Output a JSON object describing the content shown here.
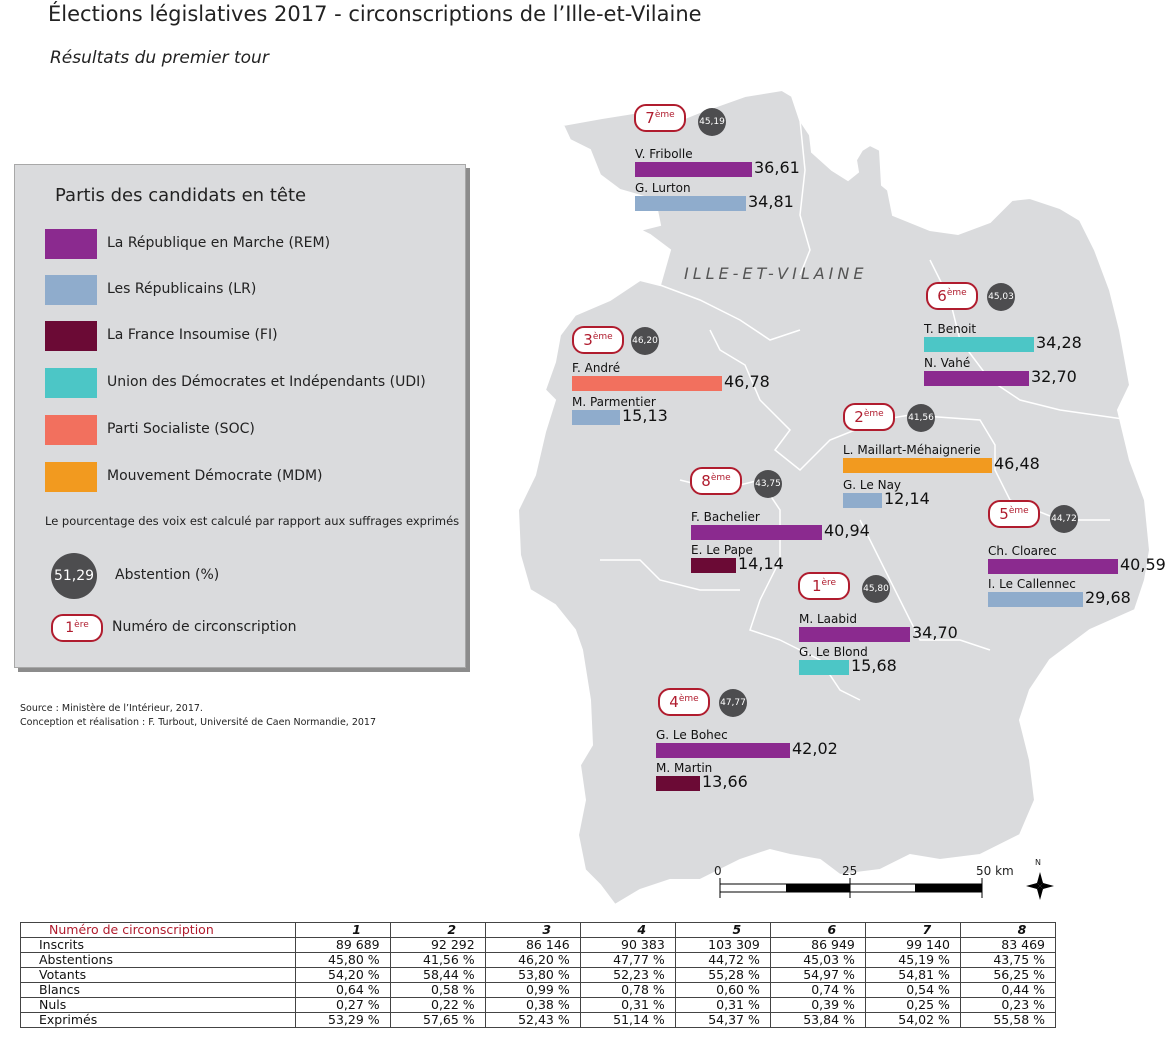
{
  "title": "Élections législatives 2017 - circonscriptions de l’Ille-et-Vilaine",
  "subtitle": "Résultats du premier tour",
  "department_label": "ILLE-ET-VILAINE",
  "colors": {
    "REM": "#8b2a8f",
    "LR": "#8faccc",
    "FI": "#6b0a35",
    "UDI": "#4cc6c6",
    "SOC": "#f2705e",
    "MDM": "#f29a1f",
    "map_fill": "#dadbdd",
    "badge": "#b01c2e",
    "abstention": "#4d4d4f"
  },
  "legend": {
    "title": "Partis des candidats en tête",
    "parties": [
      {
        "code": "REM",
        "label": "La République en Marche (REM)"
      },
      {
        "code": "LR",
        "label": "Les Républicains (LR)"
      },
      {
        "code": "FI",
        "label": "La France Insoumise (FI)"
      },
      {
        "code": "UDI",
        "label": "Union des Démocrates et Indépendants (UDI)"
      },
      {
        "code": "SOC",
        "label": "Parti Socialiste (SOC)"
      },
      {
        "code": "MDM",
        "label": "Mouvement Démocrate (MDM)"
      }
    ],
    "note": "Le pourcentage des voix est calculé par rapport aux suffrages exprimés",
    "abstention_example": "51,29",
    "abstention_label": "Abstention (%)",
    "circ_example_num": "1",
    "circ_example_suffix": "ère",
    "circ_label": "Numéro de circonscription"
  },
  "source_line1": "Source : Ministère de l’Intérieur, 2017.",
  "source_line2": "Conception et réalisation : F. Turbout, Université de Caen Normandie, 2017",
  "circonscriptions": [
    {
      "num": "7",
      "suffix": "ème",
      "abstention": "45,19",
      "candidates": [
        {
          "name": "V. Fribolle",
          "party": "REM",
          "pct": 36.61,
          "pct_label": "36,61"
        },
        {
          "name": "G. Lurton",
          "party": "LR",
          "pct": 34.81,
          "pct_label": "34,81"
        }
      ]
    },
    {
      "num": "6",
      "suffix": "ème",
      "abstention": "45,03",
      "candidates": [
        {
          "name": "T. Benoit",
          "party": "UDI",
          "pct": 34.28,
          "pct_label": "34,28"
        },
        {
          "name": "N. Vahé",
          "party": "REM",
          "pct": 32.7,
          "pct_label": "32,70"
        }
      ]
    },
    {
      "num": "3",
      "suffix": "ème",
      "abstention": "46,20",
      "candidates": [
        {
          "name": "F. André",
          "party": "SOC",
          "pct": 46.78,
          "pct_label": "46,78"
        },
        {
          "name": "M. Parmentier",
          "party": "LR",
          "pct": 15.13,
          "pct_label": "15,13"
        }
      ]
    },
    {
      "num": "2",
      "suffix": "ème",
      "abstention": "41,56",
      "candidates": [
        {
          "name": "L. Maillart-Méhaignerie",
          "party": "MDM",
          "pct": 46.48,
          "pct_label": "46,48"
        },
        {
          "name": "G. Le Nay",
          "party": "LR",
          "pct": 12.14,
          "pct_label": "12,14"
        }
      ]
    },
    {
      "num": "8",
      "suffix": "ème",
      "abstention": "43,75",
      "candidates": [
        {
          "name": "F. Bachelier",
          "party": "REM",
          "pct": 40.94,
          "pct_label": "40,94"
        },
        {
          "name": "E. Le Pape",
          "party": "FI",
          "pct": 14.14,
          "pct_label": "14,14"
        }
      ]
    },
    {
      "num": "5",
      "suffix": "ème",
      "abstention": "44,72",
      "candidates": [
        {
          "name": "Ch. Cloarec",
          "party": "REM",
          "pct": 40.59,
          "pct_label": "40,59"
        },
        {
          "name": "I. Le Callennec",
          "party": "LR",
          "pct": 29.68,
          "pct_label": "29,68"
        }
      ]
    },
    {
      "num": "1",
      "suffix": "ère",
      "abstention": "45,80",
      "candidates": [
        {
          "name": "M. Laabid",
          "party": "REM",
          "pct": 34.7,
          "pct_label": "34,70"
        },
        {
          "name": "G. Le Blond",
          "party": "UDI",
          "pct": 15.68,
          "pct_label": "15,68"
        }
      ]
    },
    {
      "num": "4",
      "suffix": "ème",
      "abstention": "47,77",
      "candidates": [
        {
          "name": "G. Le Bohec",
          "party": "REM",
          "pct": 42.02,
          "pct_label": "42,02"
        },
        {
          "name": "M. Martin",
          "party": "FI",
          "pct": 13.66,
          "pct_label": "13,66"
        }
      ]
    }
  ],
  "scale": {
    "label_0": "0",
    "label_25": "25",
    "label_50": "50 km"
  },
  "north_label": "N",
  "table": {
    "header": [
      "Numéro de circonscription",
      "1",
      "2",
      "3",
      "4",
      "5",
      "6",
      "7",
      "8"
    ],
    "rows": [
      {
        "label": "Inscrits",
        "values": [
          "89 689",
          "92 292",
          "86 146",
          "90 383",
          "103 309",
          "86 949",
          "99 140",
          "83 469"
        ]
      },
      {
        "label": "Abstentions",
        "values": [
          "45,80 %",
          "41,56 %",
          "46,20 %",
          "47,77 %",
          "44,72 %",
          "45,03 %",
          "45,19 %",
          "43,75 %"
        ]
      },
      {
        "label": "Votants",
        "values": [
          "54,20 %",
          "58,44 %",
          "53,80 %",
          "52,23 %",
          "55,28 %",
          "54,97 %",
          "54,81 %",
          "56,25 %"
        ]
      },
      {
        "label": "Blancs",
        "values": [
          "0,64 %",
          "0,58 %",
          "0,99 %",
          "0,78 %",
          "0,60 %",
          "0,74 %",
          "0,54 %",
          "0,44 %"
        ]
      },
      {
        "label": "Nuls",
        "values": [
          "0,27 %",
          "0,22 %",
          "0,38 %",
          "0,31 %",
          "0,31 %",
          "0,39 %",
          "0,25 %",
          "0,23 %"
        ]
      },
      {
        "label": "Exprimés",
        "values": [
          "53,29 %",
          "57,65 %",
          "52,43 %",
          "51,14 %",
          "54,37 %",
          "53,84 %",
          "54,02 %",
          "55,58 %"
        ]
      }
    ]
  }
}
